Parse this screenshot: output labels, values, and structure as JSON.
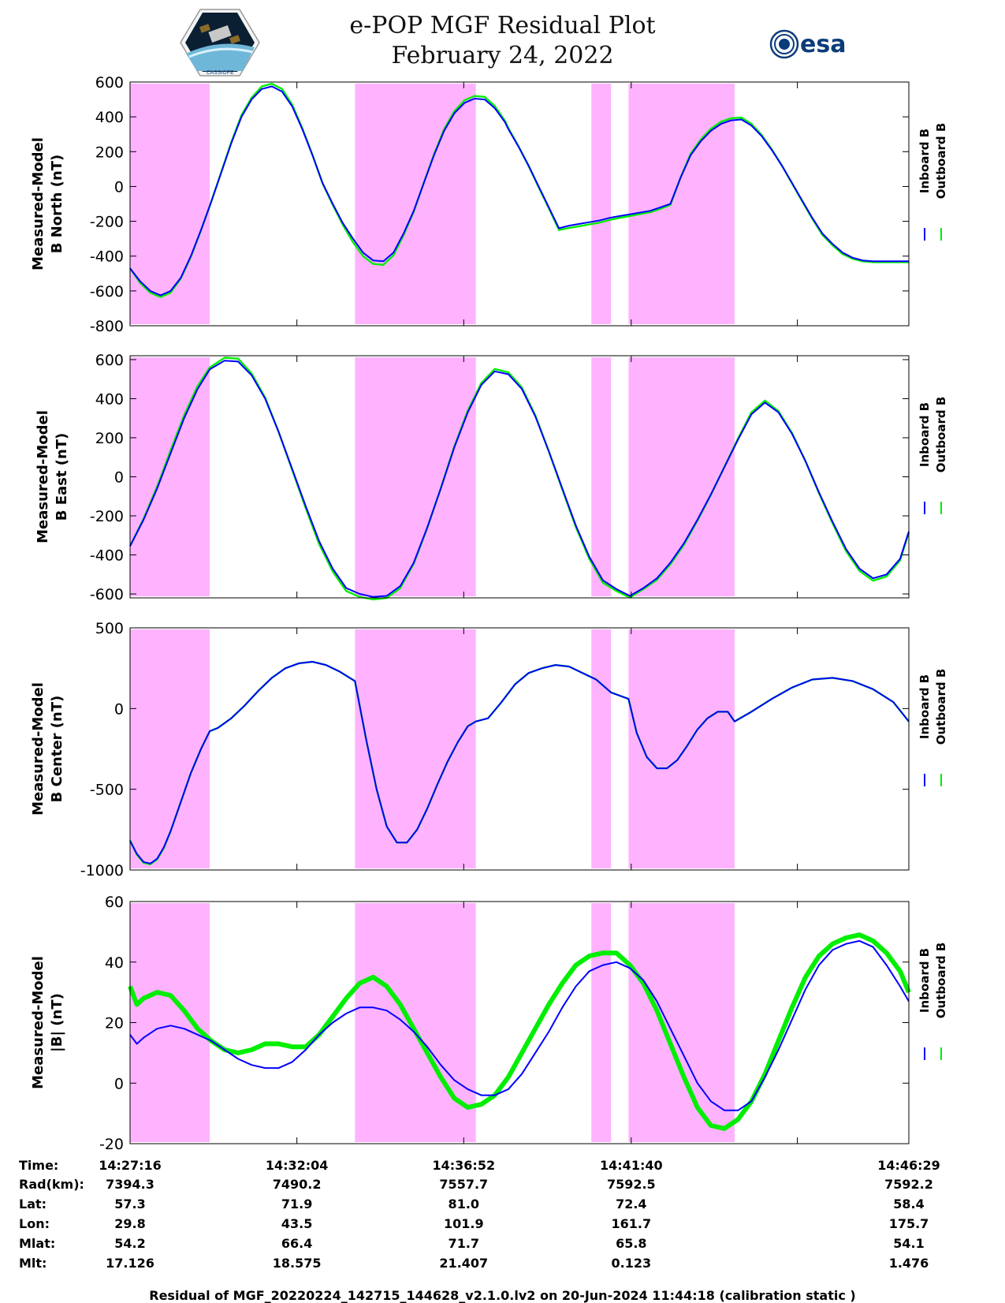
{
  "title": {
    "line1": "e-POP MGF Residual Plot",
    "line2": "February 24, 2022"
  },
  "logos": {
    "left_icon": "cassiope-satellite-logo",
    "right_label": "esa",
    "left_label": "CASSIOPE"
  },
  "colors": {
    "inboard": "#0000ff",
    "outboard": "#00ee00",
    "shade": "#ffb3ff"
  },
  "chart_data": [
    {
      "type": "line",
      "ylabel": [
        "Measured-Model",
        "B North (nT)"
      ],
      "ylim": [
        -800,
        600
      ],
      "yticks": [
        600,
        400,
        200,
        0,
        -200,
        -400,
        -600,
        -800
      ],
      "x": [
        0,
        15,
        30,
        45,
        60,
        75,
        90,
        105,
        120,
        135,
        150,
        165,
        180,
        195,
        210,
        225,
        240,
        255,
        270,
        285,
        300,
        315,
        330,
        345,
        360,
        375,
        390,
        405,
        420,
        435,
        450,
        465,
        480,
        495,
        510,
        525,
        540,
        555,
        560,
        575,
        590,
        605,
        620,
        635,
        650,
        665,
        680,
        695,
        710,
        725,
        740,
        755,
        770,
        785,
        800,
        815,
        830,
        845,
        860,
        875,
        890,
        905,
        920,
        935,
        950,
        965,
        980,
        995,
        1010,
        1025,
        1040,
        1055,
        1070,
        1085,
        1100,
        1115,
        1130,
        1145,
        1153
      ],
      "series": [
        {
          "name": "Inboard B",
          "values": [
            -470,
            -545,
            -600,
            -625,
            -600,
            -525,
            -400,
            -250,
            -90,
            80,
            250,
            400,
            500,
            560,
            575,
            545,
            460,
            330,
            180,
            20,
            -100,
            -210,
            -300,
            -380,
            -425,
            -430,
            -380,
            -270,
            -140,
            20,
            180,
            320,
            420,
            480,
            505,
            500,
            450,
            370,
            330,
            230,
            120,
            0,
            -120,
            -240,
            -225,
            -215,
            -205,
            -195,
            -180,
            -170,
            -160,
            -150,
            -140,
            -120,
            -100,
            50,
            180,
            260,
            320,
            360,
            380,
            385,
            350,
            290,
            210,
            120,
            20,
            -80,
            -180,
            -270,
            -330,
            -380,
            -410,
            -425,
            -430,
            -430,
            -430,
            -430,
            -430
          ]
        },
        {
          "name": "Outboard B",
          "values": [
            -470,
            -555,
            -610,
            -635,
            -610,
            -530,
            -405,
            -252,
            -90,
            82,
            255,
            410,
            510,
            575,
            590,
            560,
            470,
            335,
            182,
            18,
            -105,
            -220,
            -320,
            -400,
            -445,
            -450,
            -395,
            -280,
            -145,
            22,
            185,
            330,
            432,
            495,
            520,
            515,
            462,
            378,
            335,
            232,
            118,
            -5,
            -125,
            -250,
            -238,
            -228,
            -218,
            -208,
            -192,
            -180,
            -170,
            -158,
            -148,
            -128,
            -106,
            52,
            188,
            270,
            332,
            372,
            392,
            396,
            360,
            296,
            214,
            121,
            18,
            -84,
            -185,
            -278,
            -338,
            -388,
            -416,
            -430,
            -435,
            -435,
            -435,
            -435,
            -435
          ]
        }
      ],
      "shaded_intervals": [
        [
          0,
          118
        ],
        [
          333,
          512
        ],
        [
          683,
          712
        ],
        [
          738,
          895
        ]
      ]
    },
    {
      "type": "line",
      "ylabel": [
        "Measured-Model",
        "B East (nT)"
      ],
      "ylim": [
        -620,
        620
      ],
      "yticks": [
        600,
        400,
        200,
        0,
        -200,
        -400,
        -600
      ],
      "x": [
        0,
        20,
        40,
        60,
        80,
        100,
        118,
        140,
        160,
        180,
        200,
        220,
        240,
        260,
        280,
        300,
        320,
        340,
        360,
        380,
        400,
        420,
        440,
        460,
        480,
        500,
        520,
        540,
        560,
        580,
        600,
        620,
        640,
        660,
        680,
        700,
        720,
        740,
        760,
        780,
        800,
        820,
        840,
        860,
        880,
        900,
        920,
        940,
        960,
        980,
        1000,
        1020,
        1040,
        1060,
        1080,
        1100,
        1120,
        1140,
        1153
      ],
      "series": [
        {
          "name": "Inboard B",
          "values": [
            -355,
            -220,
            -60,
            120,
            300,
            450,
            550,
            595,
            590,
            520,
            400,
            230,
            40,
            -150,
            -330,
            -470,
            -570,
            -600,
            -615,
            -610,
            -560,
            -440,
            -260,
            -60,
            150,
            330,
            470,
            540,
            525,
            450,
            310,
            130,
            -60,
            -250,
            -410,
            -530,
            -575,
            -610,
            -570,
            -520,
            -440,
            -340,
            -220,
            -90,
            50,
            190,
            320,
            380,
            330,
            220,
            80,
            -80,
            -230,
            -370,
            -470,
            -520,
            -500,
            -420,
            -280
          ]
        },
        {
          "name": "Outboard B",
          "values": [
            -355,
            -215,
            -50,
            135,
            315,
            465,
            560,
            610,
            605,
            530,
            405,
            230,
            35,
            -160,
            -345,
            -485,
            -585,
            -615,
            -628,
            -620,
            -570,
            -445,
            -262,
            -58,
            155,
            338,
            480,
            552,
            535,
            458,
            315,
            130,
            -65,
            -258,
            -420,
            -542,
            -585,
            -618,
            -575,
            -528,
            -448,
            -348,
            -225,
            -92,
            52,
            195,
            330,
            390,
            336,
            224,
            80,
            -84,
            -238,
            -380,
            -482,
            -532,
            -510,
            -428,
            -285
          ]
        }
      ],
      "shaded_intervals": [
        [
          0,
          118
        ],
        [
          333,
          512
        ],
        [
          683,
          712
        ],
        [
          738,
          895
        ]
      ]
    },
    {
      "type": "line",
      "ylabel": [
        "Measured-Model",
        "B Center (nT)"
      ],
      "ylim": [
        -1000,
        500
      ],
      "yticks": [
        500,
        0,
        -500,
        -1000
      ],
      "x": [
        0,
        10,
        20,
        30,
        40,
        50,
        60,
        75,
        90,
        105,
        118,
        130,
        150,
        170,
        190,
        210,
        230,
        250,
        270,
        290,
        310,
        333,
        350,
        365,
        380,
        395,
        410,
        425,
        440,
        455,
        470,
        485,
        500,
        512,
        530,
        550,
        570,
        590,
        610,
        630,
        650,
        670,
        690,
        712,
        738,
        750,
        765,
        780,
        795,
        810,
        825,
        840,
        855,
        870,
        885,
        895,
        920,
        950,
        980,
        1010,
        1040,
        1070,
        1100,
        1130,
        1153
      ],
      "series": [
        {
          "name": "Inboard B",
          "values": [
            -820,
            -900,
            -950,
            -960,
            -930,
            -860,
            -760,
            -580,
            -400,
            -250,
            -140,
            -120,
            -60,
            20,
            110,
            190,
            250,
            280,
            290,
            270,
            230,
            170,
            -200,
            -500,
            -730,
            -830,
            -830,
            -750,
            -620,
            -470,
            -330,
            -210,
            -110,
            -80,
            -60,
            40,
            150,
            220,
            250,
            270,
            260,
            220,
            180,
            100,
            60,
            -150,
            -300,
            -370,
            -370,
            -320,
            -230,
            -130,
            -60,
            -20,
            -20,
            -80,
            -20,
            60,
            130,
            180,
            190,
            170,
            120,
            40,
            -80
          ]
        },
        {
          "name": "Outboard B",
          "values": [
            -815,
            -905,
            -955,
            -965,
            -935,
            -865,
            -760,
            -580,
            -400,
            -250,
            -140,
            -120,
            -60,
            20,
            110,
            190,
            250,
            280,
            290,
            270,
            230,
            170,
            -200,
            -500,
            -730,
            -830,
            -830,
            -750,
            -620,
            -470,
            -330,
            -210,
            -110,
            -80,
            -60,
            40,
            150,
            220,
            250,
            270,
            260,
            220,
            180,
            100,
            60,
            -150,
            -300,
            -370,
            -370,
            -320,
            -230,
            -130,
            -60,
            -20,
            -20,
            -80,
            -20,
            60,
            130,
            180,
            190,
            170,
            120,
            40,
            -80
          ]
        }
      ],
      "shaded_intervals": [
        [
          0,
          118
        ],
        [
          333,
          512
        ],
        [
          683,
          712
        ],
        [
          738,
          895
        ]
      ]
    },
    {
      "type": "line",
      "ylabel": [
        "Measured-Model",
        "|B| (nT)"
      ],
      "ylim": [
        -20,
        60
      ],
      "yticks": [
        60,
        40,
        20,
        0,
        -20
      ],
      "x": [
        0,
        10,
        20,
        40,
        60,
        80,
        100,
        120,
        140,
        160,
        180,
        200,
        220,
        240,
        260,
        280,
        300,
        320,
        340,
        360,
        380,
        400,
        420,
        440,
        460,
        480,
        500,
        520,
        540,
        560,
        580,
        600,
        620,
        640,
        660,
        680,
        700,
        720,
        740,
        760,
        780,
        800,
        820,
        840,
        860,
        880,
        900,
        920,
        940,
        960,
        980,
        1000,
        1020,
        1040,
        1060,
        1080,
        1100,
        1120,
        1140,
        1153
      ],
      "series": [
        {
          "name": "Inboard B",
          "values": [
            16,
            13,
            15,
            18,
            19,
            18,
            16,
            14,
            11,
            8,
            6,
            5,
            5,
            7,
            11,
            16,
            20,
            23,
            25,
            25,
            24,
            21,
            17,
            12,
            6,
            1,
            -2,
            -4,
            -4,
            -2,
            3,
            10,
            17,
            25,
            32,
            37,
            39,
            40,
            38,
            34,
            27,
            18,
            9,
            0,
            -6,
            -9,
            -9,
            -6,
            2,
            11,
            21,
            31,
            39,
            44,
            46,
            47,
            45,
            39,
            32,
            27
          ]
        },
        {
          "name": "Outboard B",
          "values": [
            32,
            26,
            28,
            30,
            29,
            24,
            18,
            14,
            11,
            10,
            11,
            13,
            13,
            12,
            12,
            16,
            22,
            28,
            33,
            35,
            32,
            26,
            18,
            10,
            2,
            -5,
            -8,
            -7,
            -4,
            2,
            10,
            18,
            26,
            33,
            39,
            42,
            43,
            43,
            39,
            33,
            24,
            13,
            2,
            -8,
            -14,
            -15,
            -12,
            -6,
            3,
            14,
            25,
            35,
            42,
            46,
            48,
            49,
            47,
            43,
            37,
            30
          ]
        }
      ],
      "shaded_intervals": [
        [
          0,
          118
        ],
        [
          333,
          512
        ],
        [
          683,
          712
        ],
        [
          738,
          895
        ]
      ]
    }
  ],
  "legend": {
    "inboard": "Inboard B",
    "outboard": "Outboard B"
  },
  "ephemeris": {
    "labels": [
      "Time:",
      "Rad(km):",
      "Lat:",
      "Lon:",
      "Mlat:",
      "Mlt:"
    ],
    "columns": [
      [
        "14:27:16",
        "7394.3",
        "57.3",
        "29.8",
        "54.2",
        "17.126"
      ],
      [
        "14:32:04",
        "7490.2",
        "71.9",
        "43.5",
        "66.4",
        "18.575"
      ],
      [
        "14:36:52",
        "7557.7",
        "81.0",
        "101.9",
        "71.7",
        "21.407"
      ],
      [
        "14:41:40",
        "7592.5",
        "72.4",
        "161.7",
        "65.8",
        "0.123"
      ],
      [
        "14:46:29",
        "7592.2",
        "58.4",
        "175.7",
        "54.1",
        "1.476"
      ]
    ]
  },
  "footer": "Residual of MGF_20220224_142715_144628_v2.1.0.lv2 on 20-Jun-2024 11:44:18 (calibration static )"
}
